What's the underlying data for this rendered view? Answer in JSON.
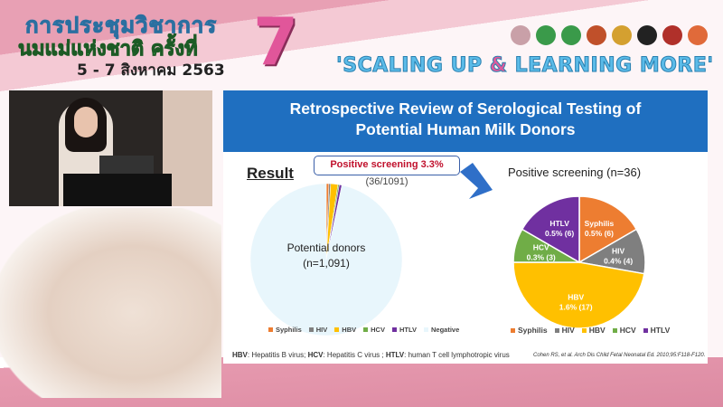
{
  "banner": {
    "thai_line1": "การประชุมวิชาการ",
    "thai_line2": "นมแม่แห่งชาติ ครั้งที่",
    "thai_date": "5 - 7 สิงหาคม 2563",
    "number": "7",
    "slogan_a": "'SCALING UP ",
    "slogan_amp": "&",
    "slogan_b": " LEARNING MORE'",
    "logos": [
      "#c9a0a8",
      "#3a9a4a",
      "#3a9a4a",
      "#c0502a",
      "#d4a030",
      "#222222",
      "#b0302a",
      "#e06a3a"
    ]
  },
  "slide": {
    "title_line1": "Retrospective Review of Serological Testing of",
    "title_line2": "Potential Human Milk Donors",
    "result_heading": "Result",
    "callout_bold": "Positive screening 3.3%",
    "callout_rest": " (36/1091)",
    "footnote": {
      "hbv_abbr": "HBV",
      "hbv": ": Hepatitis B virus; ",
      "hcv_abbr": "HCV",
      "hcv": ": Hepatitis C virus ; ",
      "htlv_abbr": "HTLV",
      "htlv": ": human T cell lymphotropic virus"
    },
    "citation": "Cohen RS, et al. Arch Dis Child Fetal Neonatal Ed. 2010;95:F118-F120."
  },
  "chart_data": [
    {
      "type": "pie",
      "center_label_line1": "Potential donors",
      "center_label_line2": "(n=1,091)",
      "categories": [
        "Syphilis",
        "HIV",
        "HBV",
        "HCV",
        "HTLV",
        "Negative"
      ],
      "values": [
        6,
        4,
        17,
        3,
        6,
        1055
      ],
      "colors": [
        "#ed7d31",
        "#7f7f7f",
        "#ffc000",
        "#70ad47",
        "#7030a0",
        "#e8f6fc"
      ],
      "legend_position": "bottom"
    },
    {
      "type": "pie",
      "title": "Positive screening (n=36)",
      "categories": [
        "Syphilis",
        "HIV",
        "HBV",
        "HCV",
        "HTLV"
      ],
      "values": [
        6,
        4,
        17,
        3,
        6
      ],
      "data_labels": [
        [
          "Syphilis",
          "0.5% (6)"
        ],
        [
          "HIV",
          "0.4% (4)"
        ],
        [
          "HBV",
          "1.6% (17)"
        ],
        [
          "HCV",
          "0.3% (3)"
        ],
        [
          "HTLV",
          "0.5% (6)"
        ]
      ],
      "colors": [
        "#ed7d31",
        "#7f7f7f",
        "#ffc000",
        "#70ad47",
        "#7030a0"
      ],
      "legend_position": "bottom"
    }
  ]
}
